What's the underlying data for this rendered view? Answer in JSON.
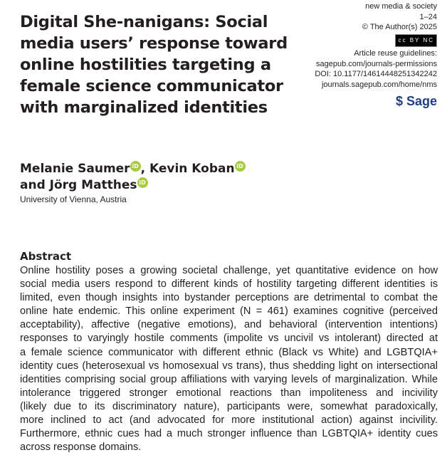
{
  "title_lines": [
    "Digital She-nanigans: Social",
    "media users’ response toward",
    "online hostilities targeting a",
    "female science communicator",
    "with marginalized identities"
  ],
  "meta": {
    "journal": "new media & society",
    "pages": "1–24",
    "copyright": "© The Author(s) 2025",
    "license": "cc BY NC",
    "reuse": "Article reuse guidelines:",
    "reuse_url": "sagepub.com/journals-permissions",
    "doi": "DOI: 10.1177/14614448251342242",
    "home": "journals.sagepub.com/home/nms",
    "publisher": "Sage"
  },
  "authors": {
    "a1": "Melanie Saumer",
    ",": ", ",
    "a2": "Kevin Koban",
    "and": "and ",
    "a3": "Jörg Matthes",
    "orcid": "iD",
    "affiliation": "University of Vienna, Austria"
  },
  "abstract": {
    "heading": "Abstract",
    "lines": [
      "Online hostility poses a growing societal challenge, yet quantitative evidence on how",
      "social media users respond to different kinds of hostility targeting different identities is",
      "limited, even though insights into bystander perceptions are detrimental to combat the",
      "online hate endemic. This online experiment (N = 461) examines cognitive (perceived",
      "acceptability), affective (negative emotions), and behavioral (intervention intentions)",
      "responses to varyingly hostile comments (impolite vs uncivil vs intolerant) directed at",
      "a female science communicator with different ethnic (Black vs White) and LGBTQIA+",
      "identity cues (heterosexual vs homosexual vs trans), thus shedding light on intersectional",
      "identities comprising social group affiliations with varying levels of marginalization. While",
      "intolerance triggered stronger emotional reactions than impoliteness and incivility",
      "(likely due to its discriminatory nature), participants were, somewhat paradoxically,",
      "more inclined to act (and advocated for more institutional action) against incivility.",
      "Furthermore, ethnic cues had a much stronger influence than LGBTQIA+ identity cues",
      "across response domains."
    ]
  }
}
